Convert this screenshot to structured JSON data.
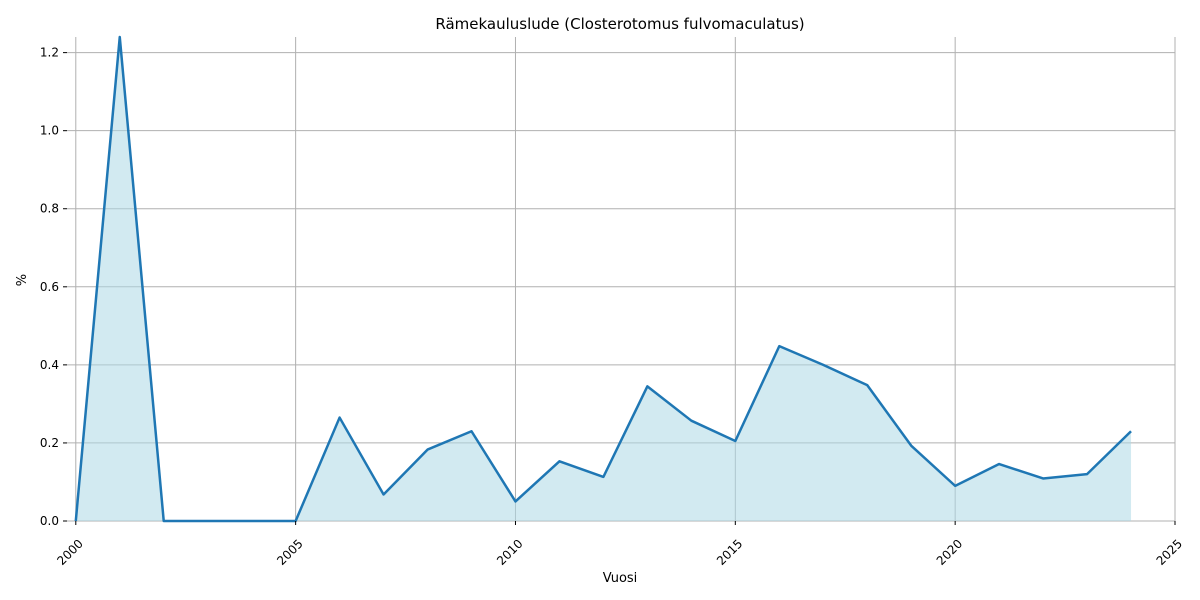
{
  "chart_data": {
    "type": "area",
    "title": "Rämekauluslude (Closterotomus fulvomaculatus)",
    "xlabel": "Vuosi",
    "ylabel": "%",
    "x": [
      2000,
      2001,
      2002,
      2003,
      2004,
      2005,
      2006,
      2007,
      2008,
      2009,
      2010,
      2011,
      2012,
      2013,
      2014,
      2015,
      2016,
      2017,
      2018,
      2019,
      2020,
      2021,
      2022,
      2023,
      2024
    ],
    "series": [
      {
        "values": [
          0.0,
          1.24,
          0.0,
          0.0,
          0.0,
          0.0,
          0.265,
          0.068,
          0.183,
          0.23,
          0.05,
          0.153,
          0.113,
          0.345,
          0.257,
          0.205,
          0.448,
          0.4,
          0.348,
          0.193,
          0.09,
          0.146,
          0.109,
          0.12,
          0.23
        ],
        "color": "#1f77b4",
        "fill_color": "#add8e6"
      }
    ],
    "xlim": [
      1999.8,
      2025
    ],
    "ylim": [
      0,
      1.24
    ],
    "xticks": [
      2000,
      2005,
      2010,
      2015,
      2020,
      2025
    ],
    "yticks": [
      "0.0",
      "0.2",
      "0.4",
      "0.6",
      "0.8",
      "1.0",
      "1.2"
    ],
    "grid": true
  }
}
